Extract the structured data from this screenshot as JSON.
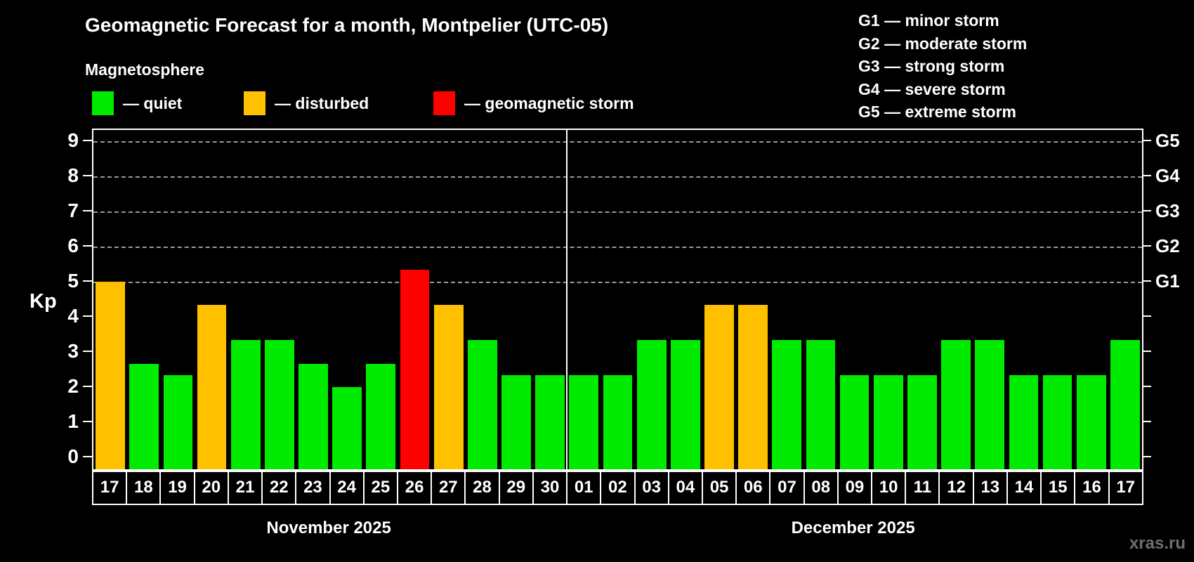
{
  "title": "Geomagnetic Forecast for a month, Montpelier (UTC-05)",
  "subtitle": "Magnetosphere",
  "legend": {
    "items": [
      {
        "key": "quiet",
        "label": "— quiet",
        "color": "#00eb00"
      },
      {
        "key": "disturbed",
        "label": "— disturbed",
        "color": "#ffc000"
      },
      {
        "key": "storm",
        "label": "— geomagnetic storm",
        "color": "#ff0000"
      }
    ]
  },
  "g_legend": [
    "G1 — minor storm",
    "G2 — moderate storm",
    "G3 — strong storm",
    "G4 — severe storm",
    "G5 — extreme storm"
  ],
  "axis": {
    "kp_label": "Kp",
    "y_ticks": [
      0,
      1,
      2,
      3,
      4,
      5,
      6,
      7,
      8,
      9
    ],
    "right_labels": [
      {
        "kp": 5,
        "label": "G1"
      },
      {
        "kp": 6,
        "label": "G2"
      },
      {
        "kp": 7,
        "label": "G3"
      },
      {
        "kp": 8,
        "label": "G4"
      },
      {
        "kp": 9,
        "label": "G5"
      }
    ],
    "grid_levels": [
      5,
      6,
      7,
      8,
      9
    ]
  },
  "watermark": "xras.ru",
  "chart_data": {
    "type": "bar",
    "title": "Geomagnetic Forecast for a month, Montpelier (UTC-05)",
    "ylabel": "Kp",
    "ylim": [
      0,
      9
    ],
    "grid": "dashed at Kp 5-9 (G1-G5)",
    "legend_position": "top",
    "months": [
      {
        "label": "November 2025",
        "day_count": 14
      },
      {
        "label": "December 2025",
        "day_count": 17
      }
    ],
    "bars": [
      {
        "month": 0,
        "day": "17",
        "kp": 4.67,
        "state": "disturbed"
      },
      {
        "month": 0,
        "day": "18",
        "kp": 2.33,
        "state": "quiet"
      },
      {
        "month": 0,
        "day": "19",
        "kp": 2.0,
        "state": "quiet"
      },
      {
        "month": 0,
        "day": "20",
        "kp": 4.0,
        "state": "disturbed"
      },
      {
        "month": 0,
        "day": "21",
        "kp": 3.0,
        "state": "quiet"
      },
      {
        "month": 0,
        "day": "22",
        "kp": 3.0,
        "state": "quiet"
      },
      {
        "month": 0,
        "day": "23",
        "kp": 2.33,
        "state": "quiet"
      },
      {
        "month": 0,
        "day": "24",
        "kp": 1.67,
        "state": "quiet"
      },
      {
        "month": 0,
        "day": "25",
        "kp": 2.33,
        "state": "quiet"
      },
      {
        "month": 0,
        "day": "26",
        "kp": 5.0,
        "state": "storm"
      },
      {
        "month": 0,
        "day": "27",
        "kp": 4.0,
        "state": "disturbed"
      },
      {
        "month": 0,
        "day": "28",
        "kp": 3.0,
        "state": "quiet"
      },
      {
        "month": 0,
        "day": "29",
        "kp": 2.0,
        "state": "quiet"
      },
      {
        "month": 0,
        "day": "30",
        "kp": 2.0,
        "state": "quiet"
      },
      {
        "month": 1,
        "day": "01",
        "kp": 2.0,
        "state": "quiet"
      },
      {
        "month": 1,
        "day": "02",
        "kp": 2.0,
        "state": "quiet"
      },
      {
        "month": 1,
        "day": "03",
        "kp": 3.0,
        "state": "quiet"
      },
      {
        "month": 1,
        "day": "04",
        "kp": 3.0,
        "state": "quiet"
      },
      {
        "month": 1,
        "day": "05",
        "kp": 4.0,
        "state": "disturbed"
      },
      {
        "month": 1,
        "day": "06",
        "kp": 4.0,
        "state": "disturbed"
      },
      {
        "month": 1,
        "day": "07",
        "kp": 3.0,
        "state": "quiet"
      },
      {
        "month": 1,
        "day": "08",
        "kp": 3.0,
        "state": "quiet"
      },
      {
        "month": 1,
        "day": "09",
        "kp": 2.0,
        "state": "quiet"
      },
      {
        "month": 1,
        "day": "10",
        "kp": 2.0,
        "state": "quiet"
      },
      {
        "month": 1,
        "day": "11",
        "kp": 2.0,
        "state": "quiet"
      },
      {
        "month": 1,
        "day": "12",
        "kp": 3.0,
        "state": "quiet"
      },
      {
        "month": 1,
        "day": "13",
        "kp": 3.0,
        "state": "quiet"
      },
      {
        "month": 1,
        "day": "14",
        "kp": 2.0,
        "state": "quiet"
      },
      {
        "month": 1,
        "day": "15",
        "kp": 2.0,
        "state": "quiet"
      },
      {
        "month": 1,
        "day": "16",
        "kp": 2.0,
        "state": "quiet"
      },
      {
        "month": 1,
        "day": "17",
        "kp": 3.0,
        "state": "quiet"
      }
    ]
  }
}
